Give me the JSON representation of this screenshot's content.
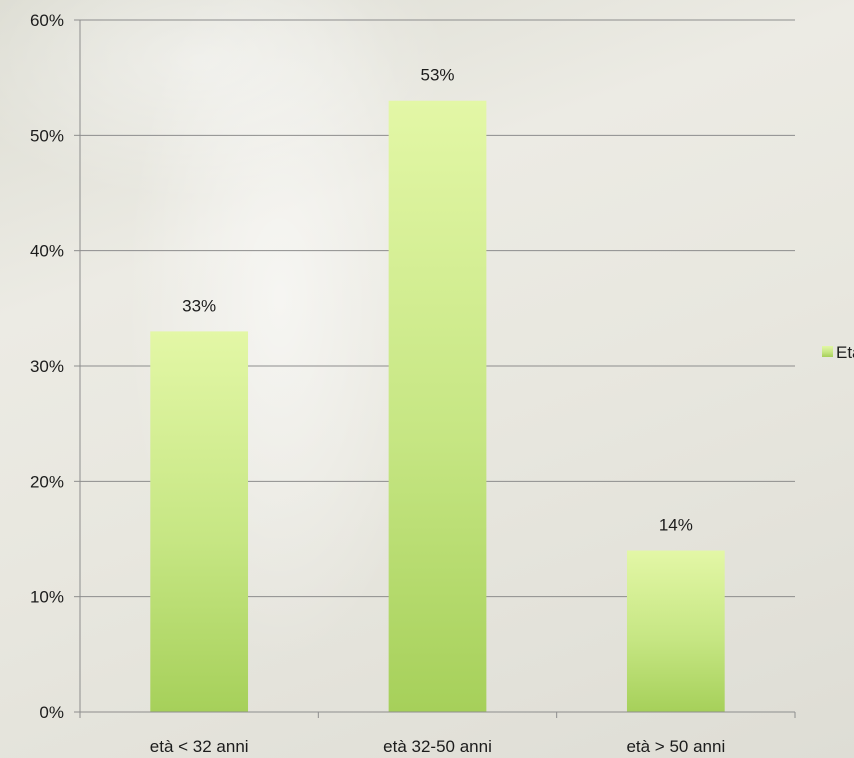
{
  "chart_data": {
    "type": "bar",
    "categories": [
      "età < 32 anni",
      "età 32-50 anni",
      "età > 50 anni"
    ],
    "series": [
      {
        "name": "Età",
        "values": [
          33,
          53,
          14
        ],
        "color": "#b9dc72"
      }
    ],
    "data_labels": [
      "33%",
      "53%",
      "14%"
    ],
    "y_ticks": [
      "0%",
      "10%",
      "20%",
      "30%",
      "40%",
      "50%",
      "60%"
    ],
    "ylim": [
      0,
      60
    ],
    "grid": true,
    "legend_position": "right",
    "title": "",
    "xlabel": "",
    "ylabel": ""
  }
}
